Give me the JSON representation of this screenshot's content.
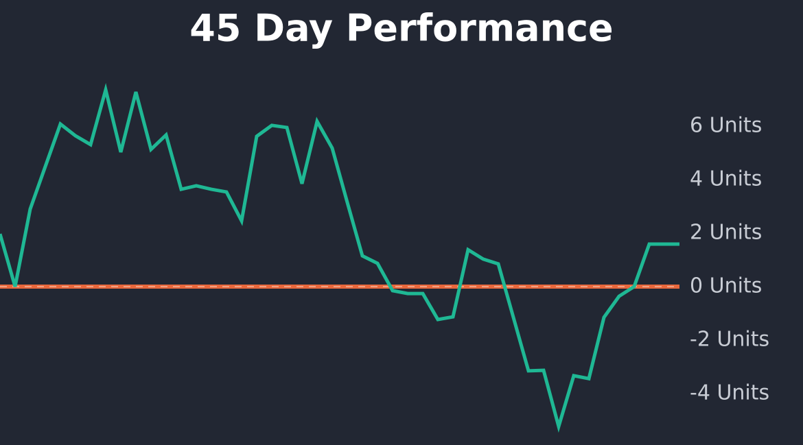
{
  "chart_data": {
    "type": "line",
    "title": "45 Day Performance",
    "series": [
      {
        "color": "#1fb894",
        "values": [
          1.97,
          0,
          2.9,
          4.49,
          6.08,
          5.64,
          5.31,
          7.36,
          5.03,
          7.28,
          5.13,
          5.67,
          3.64,
          3.77,
          3.64,
          3.54,
          2.46,
          5.62,
          6.03,
          5.95,
          3.85,
          6.18,
          5.18,
          3.15,
          1.15,
          0.87,
          -0.15,
          -0.26,
          -0.26,
          -1.23,
          -1.13,
          1.38,
          1.03,
          0.85,
          -1.15,
          -3.15,
          -3.13,
          -5.23,
          -3.33,
          -3.44,
          -1.15,
          -0.36,
          0,
          1.59,
          1.59,
          1.59
        ]
      }
    ],
    "ylim": [
      -5.9,
      8.1
    ],
    "yticks": [
      {
        "value": -4,
        "label": "-4 Units"
      },
      {
        "value": -2,
        "label": "-2 Units"
      },
      {
        "value": 0,
        "label": "0 Units"
      },
      {
        "value": 2,
        "label": "2 Units"
      },
      {
        "value": 4,
        "label": "4 Units"
      },
      {
        "value": 6,
        "label": "6 Units"
      }
    ],
    "zero_line_color": "#e8673c"
  }
}
